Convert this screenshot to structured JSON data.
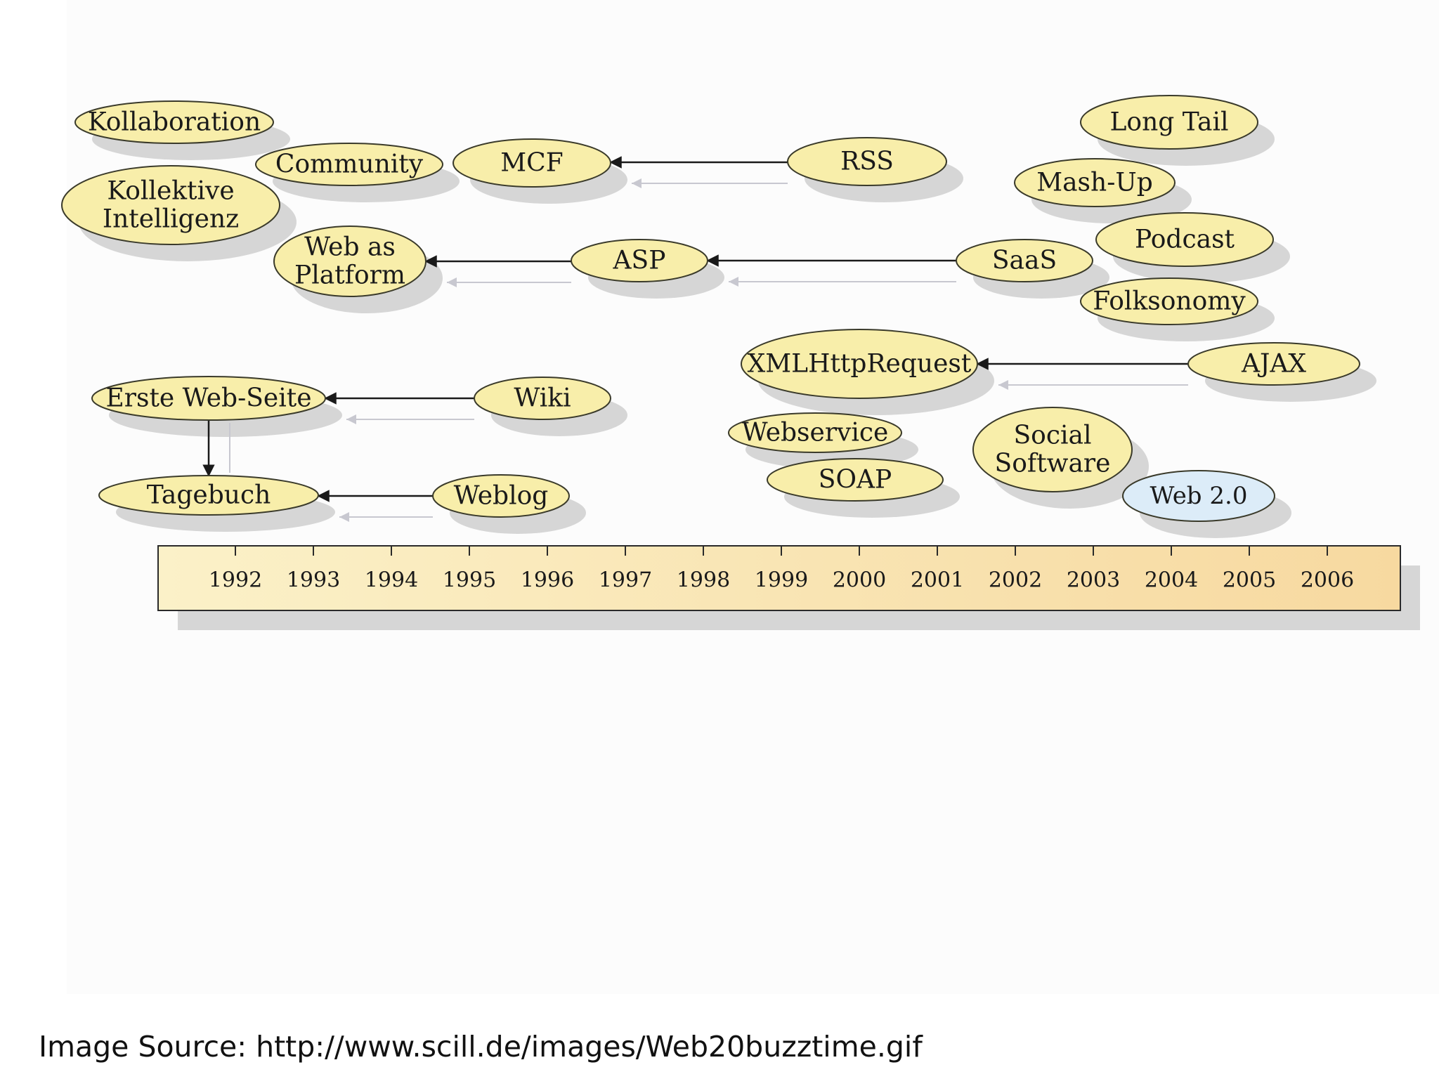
{
  "colors": {
    "node_fill": "#f8eeaa",
    "node_stroke": "#3a3a2a",
    "highlight_fill": "#dcecf8",
    "shadow": "#d6d6d6",
    "arrow": "#1a1a1a",
    "arrow_ghost": "#c8c8d0",
    "timeline_left": "#fbf1c8",
    "timeline_right": "#f7d9a0"
  },
  "diagram": {
    "nodes": [
      {
        "id": "kollaboration",
        "lines": [
          "Kollaboration"
        ]
      },
      {
        "id": "community",
        "lines": [
          "Community"
        ]
      },
      {
        "id": "kollektive-intelligenz",
        "lines": [
          "Kollektive",
          "Intelligenz"
        ]
      },
      {
        "id": "mcf",
        "lines": [
          "MCF"
        ]
      },
      {
        "id": "rss",
        "lines": [
          "RSS"
        ]
      },
      {
        "id": "web-as-platform",
        "lines": [
          "Web as",
          "Platform"
        ]
      },
      {
        "id": "asp",
        "lines": [
          "ASP"
        ]
      },
      {
        "id": "saas",
        "lines": [
          "SaaS"
        ]
      },
      {
        "id": "long-tail",
        "lines": [
          "Long Tail"
        ]
      },
      {
        "id": "mash-up",
        "lines": [
          "Mash-Up"
        ]
      },
      {
        "id": "podcast",
        "lines": [
          "Podcast"
        ]
      },
      {
        "id": "folksonomy",
        "lines": [
          "Folksonomy"
        ]
      },
      {
        "id": "xmlhttprequest",
        "lines": [
          "XMLHttpRequest"
        ]
      },
      {
        "id": "ajax",
        "lines": [
          "AJAX"
        ]
      },
      {
        "id": "erste-web-seite",
        "lines": [
          "Erste Web-Seite"
        ]
      },
      {
        "id": "wiki",
        "lines": [
          "Wiki"
        ]
      },
      {
        "id": "tagebuch",
        "lines": [
          "Tagebuch"
        ]
      },
      {
        "id": "weblog",
        "lines": [
          "Weblog"
        ]
      },
      {
        "id": "webservice",
        "lines": [
          "Webservice"
        ]
      },
      {
        "id": "soap",
        "lines": [
          "SOAP"
        ]
      },
      {
        "id": "social-software",
        "lines": [
          "Social",
          "Software"
        ]
      },
      {
        "id": "web-2-0",
        "lines": [
          "Web 2.0"
        ],
        "highlight": true
      }
    ],
    "edges": [
      {
        "from": "rss",
        "to": "mcf"
      },
      {
        "from": "asp",
        "to": "web-as-platform"
      },
      {
        "from": "saas",
        "to": "asp"
      },
      {
        "from": "ajax",
        "to": "xmlhttprequest"
      },
      {
        "from": "wiki",
        "to": "erste-web-seite"
      },
      {
        "from": "weblog",
        "to": "tagebuch"
      },
      {
        "from": "erste-web-seite",
        "to": "tagebuch"
      }
    ],
    "timeline_years": [
      "1992",
      "1993",
      "1994",
      "1995",
      "1996",
      "1997",
      "1998",
      "1999",
      "2000",
      "2001",
      "2002",
      "2003",
      "2004",
      "2005",
      "2006"
    ]
  },
  "caption": "Image Source: http://www.scill.de/images/Web20buzztime.gif"
}
